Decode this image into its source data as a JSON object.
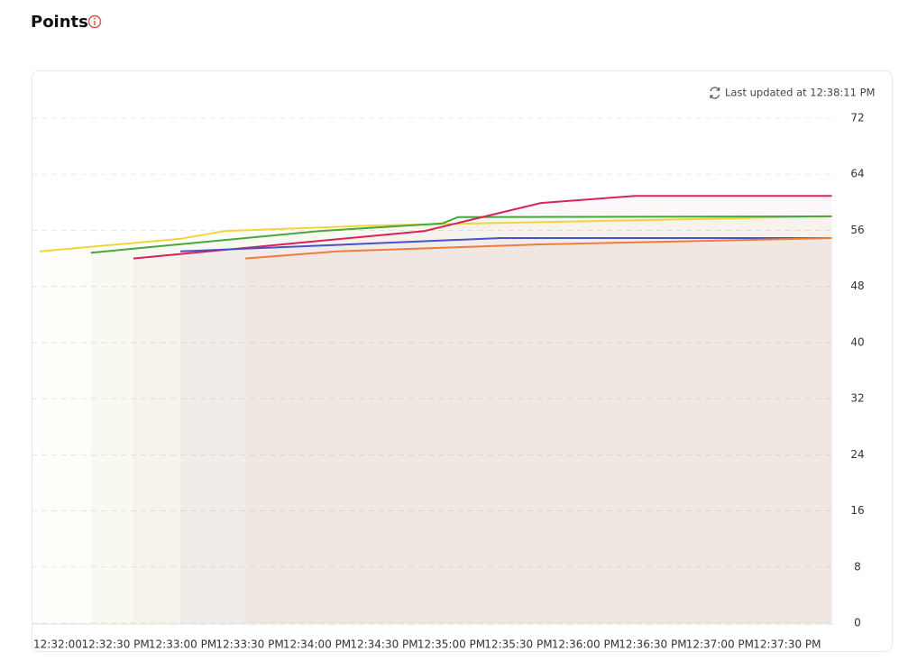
{
  "chart_data": {
    "type": "line",
    "title": "Points",
    "status": "Last updated at 12:38:11 PM",
    "xlim": [
      -7.5,
      351
    ],
    "xticks": [
      {
        "value": 0,
        "label": "12:32:00..."
      },
      {
        "value": 30,
        "label": "12:32:30 PM"
      },
      {
        "value": 60,
        "label": "12:33:00 PM"
      },
      {
        "value": 90,
        "label": "12:33:30 PM"
      },
      {
        "value": 120,
        "label": "12:34:00 PM"
      },
      {
        "value": 150,
        "label": "12:34:30 PM"
      },
      {
        "value": 180,
        "label": "12:35:00 PM"
      },
      {
        "value": 210,
        "label": "12:35:30 PM"
      },
      {
        "value": 240,
        "label": "12:36:00 PM"
      },
      {
        "value": 270,
        "label": "12:36:30 PM"
      },
      {
        "value": 300,
        "label": "12:37:00 PM"
      },
      {
        "value": 330,
        "label": "12:37:30 PM"
      }
    ],
    "ylim": [
      0,
      72
    ],
    "yticks": [
      0,
      8,
      16,
      24,
      32,
      40,
      48,
      56,
      64,
      72
    ],
    "grid": true,
    "series": [
      {
        "color": "#f2d43a",
        "x": [
          -4,
          59,
          79,
          146,
          350
        ],
        "values": [
          53.0,
          54.8,
          55.9,
          56.7,
          58.0
        ]
      },
      {
        "color": "#44a83c",
        "x": [
          19,
          121,
          176,
          183,
          350
        ],
        "values": [
          52.8,
          55.9,
          57.0,
          57.9,
          58.0
        ]
      },
      {
        "color": "#d6245a",
        "x": [
          38,
          168,
          220,
          262,
          350
        ],
        "values": [
          52.0,
          55.9,
          59.9,
          60.9,
          60.9
        ]
      },
      {
        "color": "#4a52c4",
        "x": [
          59,
          202,
          350
        ],
        "values": [
          53.0,
          54.9,
          54.9
        ]
      },
      {
        "color": "#ee7d3b",
        "x": [
          88,
          129,
          220,
          350
        ],
        "values": [
          52.0,
          53.0,
          54.0,
          54.9
        ]
      }
    ]
  }
}
